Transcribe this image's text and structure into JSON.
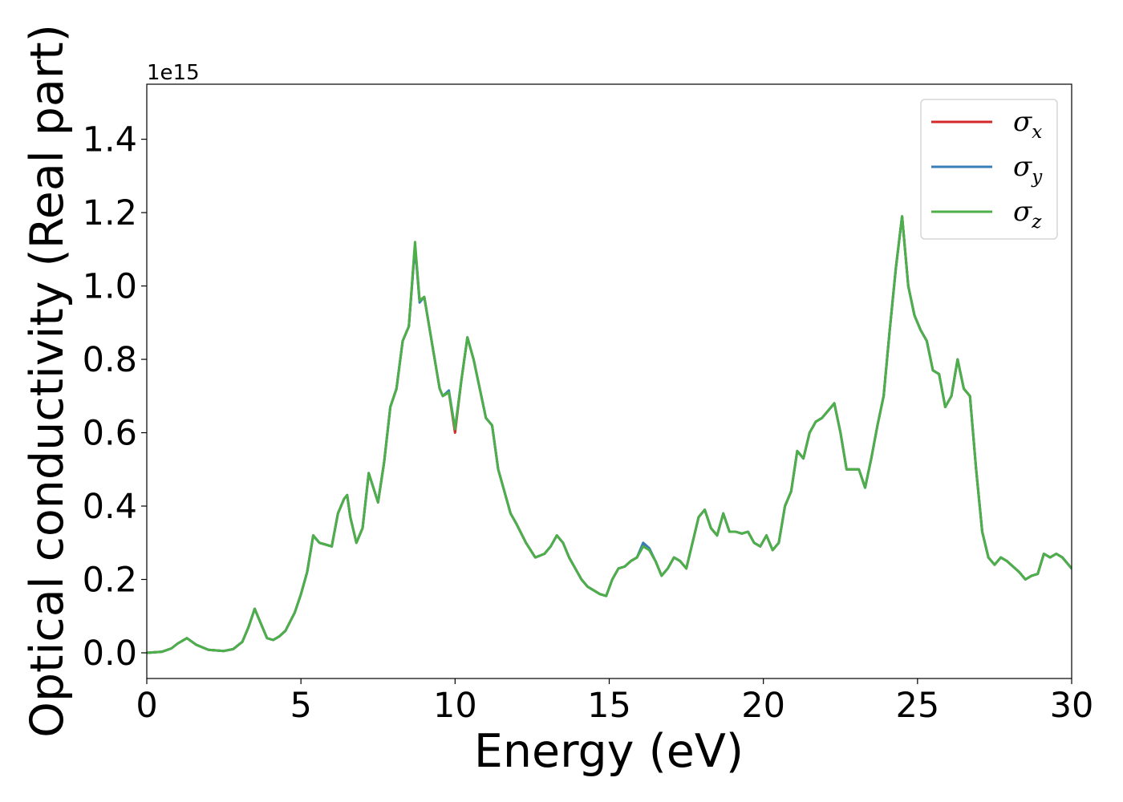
{
  "chart_data": {
    "type": "line",
    "xlabel": "Energy (eV)",
    "ylabel": "Optical conductivity (Real part)",
    "y_offset_text": "1e15",
    "xlim": [
      0,
      30
    ],
    "ylim": [
      -0.07,
      1.55
    ],
    "x_ticks": [
      "0",
      "5",
      "10",
      "15",
      "20",
      "25",
      "30"
    ],
    "y_ticks": [
      "0.0",
      "0.2",
      "0.4",
      "0.6",
      "0.8",
      "1.0",
      "1.2",
      "1.4"
    ],
    "grid": false,
    "legend_position": "top-right",
    "x": [
      0,
      0.5,
      0.8,
      1.0,
      1.3,
      1.6,
      2.0,
      2.5,
      2.8,
      3.1,
      3.3,
      3.5,
      3.7,
      3.9,
      4.1,
      4.3,
      4.5,
      4.8,
      5.0,
      5.2,
      5.4,
      5.6,
      5.8,
      6.0,
      6.2,
      6.4,
      6.5,
      6.6,
      6.8,
      7.0,
      7.2,
      7.5,
      7.7,
      7.9,
      8.1,
      8.3,
      8.5,
      8.7,
      8.85,
      9.0,
      9.3,
      9.5,
      9.6,
      9.8,
      10.0,
      10.2,
      10.4,
      10.6,
      10.8,
      11.0,
      11.2,
      11.4,
      11.6,
      11.8,
      12.0,
      12.3,
      12.6,
      12.9,
      13.1,
      13.3,
      13.5,
      13.7,
      13.9,
      14.1,
      14.3,
      14.5,
      14.7,
      14.9,
      15.1,
      15.3,
      15.5,
      15.7,
      15.9,
      16.1,
      16.3,
      16.5,
      16.7,
      16.9,
      17.1,
      17.3,
      17.5,
      17.7,
      17.9,
      18.1,
      18.3,
      18.5,
      18.7,
      18.9,
      19.1,
      19.3,
      19.5,
      19.7,
      19.9,
      20.1,
      20.3,
      20.5,
      20.7,
      20.9,
      21.1,
      21.3,
      21.5,
      21.7,
      21.9,
      22.1,
      22.3,
      22.5,
      22.7,
      22.9,
      23.1,
      23.3,
      23.5,
      23.7,
      23.9,
      24.1,
      24.3,
      24.5,
      24.7,
      24.9,
      25.1,
      25.3,
      25.5,
      25.7,
      25.9,
      26.1,
      26.3,
      26.5,
      26.7,
      26.9,
      27.1,
      27.3,
      27.5,
      27.7,
      27.9,
      28.1,
      28.3,
      28.5,
      28.7,
      28.9,
      29.1,
      29.3,
      29.5,
      29.7,
      30.0
    ],
    "series": [
      {
        "name": "σx",
        "color": "#d62728",
        "values": [
          0.0,
          0.003,
          0.012,
          0.025,
          0.04,
          0.022,
          0.008,
          0.005,
          0.01,
          0.03,
          0.07,
          0.12,
          0.08,
          0.04,
          0.035,
          0.045,
          0.06,
          0.11,
          0.16,
          0.22,
          0.32,
          0.3,
          0.295,
          0.29,
          0.38,
          0.42,
          0.43,
          0.37,
          0.3,
          0.34,
          0.49,
          0.41,
          0.52,
          0.67,
          0.72,
          0.85,
          0.89,
          1.11,
          0.96,
          0.97,
          0.82,
          0.72,
          0.7,
          0.71,
          0.6,
          0.74,
          0.86,
          0.8,
          0.72,
          0.64,
          0.62,
          0.5,
          0.44,
          0.38,
          0.35,
          0.3,
          0.26,
          0.27,
          0.29,
          0.32,
          0.3,
          0.26,
          0.23,
          0.2,
          0.18,
          0.17,
          0.16,
          0.155,
          0.2,
          0.23,
          0.235,
          0.25,
          0.26,
          0.295,
          0.28,
          0.25,
          0.21,
          0.23,
          0.26,
          0.25,
          0.23,
          0.3,
          0.37,
          0.39,
          0.34,
          0.32,
          0.38,
          0.33,
          0.33,
          0.325,
          0.33,
          0.3,
          0.29,
          0.32,
          0.28,
          0.3,
          0.4,
          0.44,
          0.55,
          0.53,
          0.6,
          0.63,
          0.64,
          0.66,
          0.68,
          0.6,
          0.5,
          0.5,
          0.5,
          0.45,
          0.53,
          0.62,
          0.7,
          0.88,
          1.05,
          1.19,
          1.0,
          0.92,
          0.88,
          0.85,
          0.77,
          0.76,
          0.67,
          0.7,
          0.8,
          0.72,
          0.7,
          0.5,
          0.33,
          0.26,
          0.24,
          0.26,
          0.25,
          0.235,
          0.22,
          0.2,
          0.21,
          0.215,
          0.27,
          0.26,
          0.27,
          0.26,
          0.23
        ]
      },
      {
        "name": "σy",
        "color": "#377eb8",
        "values": [
          0.0,
          0.003,
          0.012,
          0.025,
          0.04,
          0.022,
          0.008,
          0.005,
          0.01,
          0.03,
          0.07,
          0.12,
          0.08,
          0.04,
          0.035,
          0.045,
          0.06,
          0.11,
          0.16,
          0.22,
          0.32,
          0.3,
          0.295,
          0.29,
          0.38,
          0.42,
          0.43,
          0.37,
          0.3,
          0.34,
          0.49,
          0.41,
          0.52,
          0.67,
          0.72,
          0.85,
          0.89,
          1.11,
          0.955,
          0.97,
          0.82,
          0.72,
          0.7,
          0.715,
          0.61,
          0.74,
          0.86,
          0.8,
          0.72,
          0.64,
          0.62,
          0.5,
          0.44,
          0.38,
          0.35,
          0.3,
          0.26,
          0.27,
          0.29,
          0.32,
          0.3,
          0.26,
          0.23,
          0.2,
          0.18,
          0.17,
          0.16,
          0.155,
          0.2,
          0.23,
          0.235,
          0.25,
          0.26,
          0.3,
          0.285,
          0.25,
          0.21,
          0.23,
          0.26,
          0.25,
          0.23,
          0.3,
          0.37,
          0.39,
          0.34,
          0.32,
          0.38,
          0.33,
          0.33,
          0.325,
          0.33,
          0.3,
          0.29,
          0.32,
          0.28,
          0.3,
          0.4,
          0.44,
          0.55,
          0.53,
          0.6,
          0.63,
          0.64,
          0.66,
          0.68,
          0.6,
          0.5,
          0.5,
          0.5,
          0.45,
          0.53,
          0.62,
          0.7,
          0.88,
          1.05,
          1.19,
          1.0,
          0.92,
          0.88,
          0.85,
          0.77,
          0.76,
          0.67,
          0.7,
          0.8,
          0.72,
          0.7,
          0.5,
          0.33,
          0.26,
          0.24,
          0.26,
          0.25,
          0.235,
          0.22,
          0.2,
          0.21,
          0.215,
          0.27,
          0.26,
          0.27,
          0.26,
          0.23
        ]
      },
      {
        "name": "σz",
        "color": "#4daf4a",
        "values": [
          0.0,
          0.003,
          0.012,
          0.025,
          0.04,
          0.022,
          0.008,
          0.005,
          0.01,
          0.03,
          0.07,
          0.12,
          0.08,
          0.04,
          0.035,
          0.045,
          0.06,
          0.11,
          0.16,
          0.22,
          0.32,
          0.3,
          0.295,
          0.29,
          0.38,
          0.42,
          0.43,
          0.37,
          0.3,
          0.34,
          0.49,
          0.41,
          0.52,
          0.67,
          0.72,
          0.85,
          0.89,
          1.12,
          0.96,
          0.97,
          0.82,
          0.72,
          0.7,
          0.71,
          0.61,
          0.74,
          0.86,
          0.8,
          0.72,
          0.64,
          0.62,
          0.5,
          0.44,
          0.38,
          0.35,
          0.3,
          0.26,
          0.27,
          0.29,
          0.32,
          0.3,
          0.26,
          0.23,
          0.2,
          0.18,
          0.17,
          0.16,
          0.155,
          0.2,
          0.23,
          0.235,
          0.25,
          0.26,
          0.29,
          0.28,
          0.25,
          0.21,
          0.23,
          0.26,
          0.25,
          0.23,
          0.3,
          0.37,
          0.39,
          0.34,
          0.32,
          0.38,
          0.33,
          0.33,
          0.325,
          0.33,
          0.3,
          0.29,
          0.32,
          0.28,
          0.3,
          0.4,
          0.44,
          0.55,
          0.53,
          0.6,
          0.63,
          0.64,
          0.66,
          0.68,
          0.6,
          0.5,
          0.5,
          0.5,
          0.45,
          0.53,
          0.62,
          0.7,
          0.88,
          1.05,
          1.19,
          1.0,
          0.92,
          0.88,
          0.85,
          0.77,
          0.76,
          0.67,
          0.7,
          0.8,
          0.72,
          0.7,
          0.5,
          0.33,
          0.26,
          0.24,
          0.26,
          0.25,
          0.235,
          0.22,
          0.2,
          0.21,
          0.215,
          0.27,
          0.26,
          0.27,
          0.26,
          0.23
        ]
      }
    ],
    "legend": [
      {
        "symbol": "σ",
        "sub": "x",
        "color": "#d62728"
      },
      {
        "symbol": "σ",
        "sub": "y",
        "color": "#377eb8"
      },
      {
        "symbol": "σ",
        "sub": "z",
        "color": "#4daf4a"
      }
    ]
  }
}
